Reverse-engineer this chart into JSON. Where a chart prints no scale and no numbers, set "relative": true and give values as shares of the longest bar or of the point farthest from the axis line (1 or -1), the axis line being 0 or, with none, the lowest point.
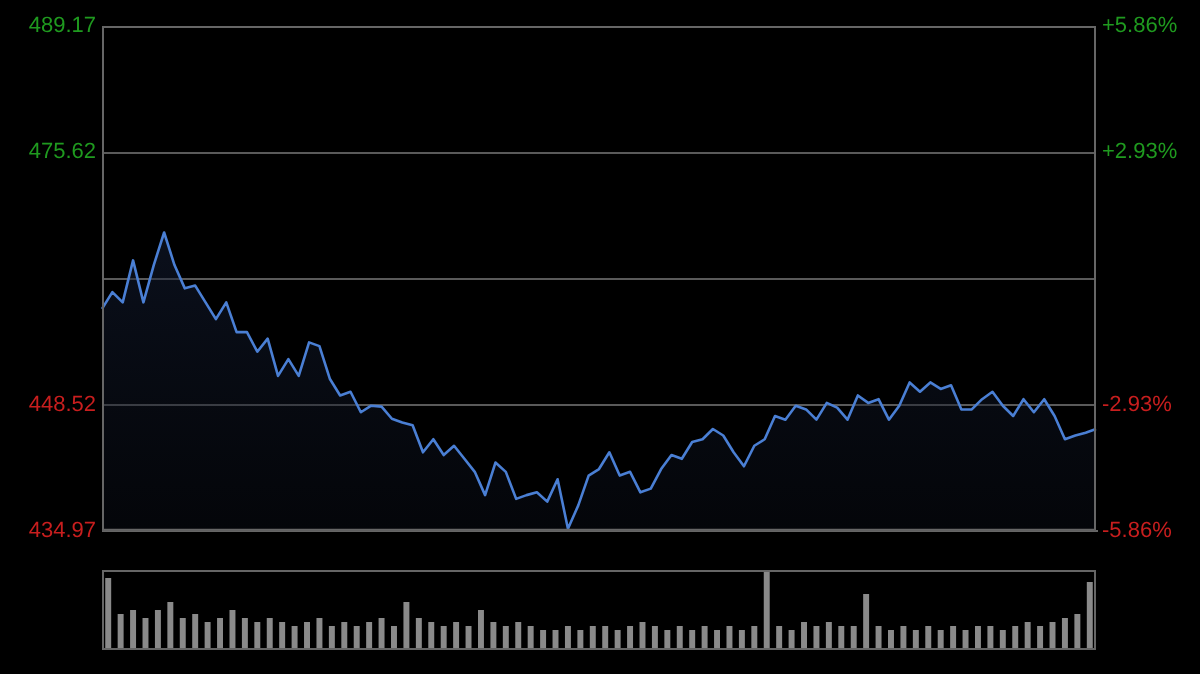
{
  "chart_data": [
    {
      "type": "area",
      "categories": [
        null,
        null,
        null,
        null,
        null,
        null,
        null,
        null,
        null,
        null,
        null,
        null,
        null,
        null,
        null,
        null,
        null,
        null,
        null,
        null,
        null,
        null,
        null,
        null,
        null,
        null,
        null,
        null,
        null,
        null,
        null,
        null,
        null,
        null,
        null,
        null,
        null,
        null,
        null,
        null,
        null,
        null,
        null,
        null,
        null,
        null,
        null,
        null,
        null,
        null,
        null,
        null,
        null,
        null,
        null,
        null,
        null,
        null,
        null,
        null,
        null,
        null,
        null,
        null,
        null,
        null,
        null,
        null,
        null,
        null,
        null,
        null,
        null,
        null,
        null,
        null,
        null,
        null,
        null,
        null,
        null,
        null,
        null,
        null,
        null,
        null,
        null,
        null,
        null,
        null,
        null,
        null,
        null,
        null,
        null,
        null,
        null
      ],
      "series": [
        {
          "color": "#4a7fd4",
          "values": [
            458.8,
            460.6,
            459.5,
            464.0,
            459.5,
            463.5,
            467.0,
            463.5,
            461.0,
            461.3,
            459.5,
            457.7,
            459.5,
            456.3,
            456.3,
            454.2,
            455.6,
            451.6,
            453.4,
            451.6,
            455.2,
            454.8,
            451.3,
            449.5,
            449.9,
            447.7,
            448.4,
            448.3,
            447.0,
            446.6,
            446.3,
            443.4,
            444.8,
            443.1,
            444.1,
            442.7,
            441.3,
            438.8,
            442.3,
            441.3,
            438.4,
            438.8,
            439.1,
            438.1,
            440.5,
            435.2,
            437.7,
            440.9,
            441.6,
            443.4,
            440.9,
            441.3,
            439.1,
            439.5,
            441.6,
            443.1,
            442.7,
            444.5,
            444.8,
            445.9,
            445.2,
            443.4,
            441.9,
            444.1,
            444.8,
            447.3,
            446.9,
            448.4,
            448.0,
            446.9,
            448.7,
            448.2,
            446.9,
            449.5,
            448.7,
            449.1,
            446.9,
            448.4,
            450.9,
            449.9,
            450.9,
            450.2,
            450.6,
            448.0,
            448.0,
            449.1,
            449.9,
            448.4,
            447.3,
            449.1,
            447.7,
            449.1,
            447.3,
            444.8,
            445.2,
            445.5,
            445.9
          ]
        }
      ],
      "ylim": [
        434.97,
        489.17
      ],
      "yticks": [
        434.97,
        448.52,
        {
          "value": 462.07,
          "label": null
        },
        475.62,
        489.17
      ],
      "y2lim": [
        -5.86,
        5.86
      ],
      "y2ticks": [
        {
          "value": -5.86,
          "label": "-5.86%"
        },
        {
          "value": -2.93,
          "label": "-2.93%"
        },
        {
          "value": 0,
          "label": null
        },
        {
          "value": 2.93,
          "label": "+2.93%"
        },
        {
          "value": 5.86,
          "label": "+5.86%"
        }
      ],
      "grid": "y",
      "legend": false,
      "marker": "none"
    },
    {
      "type": "bar",
      "relative": true,
      "color": "#8a8a8a",
      "categories": [
        null,
        null,
        null,
        null,
        null,
        null,
        null,
        null,
        null,
        null,
        null,
        null,
        null,
        null,
        null,
        null,
        null,
        null,
        null,
        null,
        null,
        null,
        null,
        null,
        null,
        null,
        null,
        null,
        null,
        null,
        null,
        null,
        null,
        null,
        null,
        null,
        null,
        null,
        null,
        null,
        null,
        null,
        null,
        null,
        null,
        null,
        null,
        null,
        null,
        null,
        null,
        null,
        null,
        null,
        null,
        null,
        null,
        null,
        null,
        null,
        null,
        null,
        null,
        null,
        null,
        null,
        null,
        null,
        null,
        null,
        null,
        null,
        null,
        null,
        null,
        null,
        null,
        null,
        null,
        null
      ],
      "values": [
        0.9,
        0.45,
        0.5,
        0.4,
        0.5,
        0.6,
        0.4,
        0.45,
        0.35,
        0.4,
        0.5,
        0.4,
        0.35,
        0.4,
        0.35,
        0.3,
        0.35,
        0.4,
        0.3,
        0.35,
        0.3,
        0.35,
        0.4,
        0.3,
        0.6,
        0.4,
        0.35,
        0.3,
        0.35,
        0.3,
        0.5,
        0.35,
        0.3,
        0.35,
        0.3,
        0.25,
        0.25,
        0.3,
        0.25,
        0.3,
        0.3,
        0.25,
        0.3,
        0.35,
        0.3,
        0.25,
        0.3,
        0.25,
        0.3,
        0.25,
        0.3,
        0.25,
        0.3,
        1.0,
        0.3,
        0.25,
        0.35,
        0.3,
        0.35,
        0.3,
        0.3,
        0.7,
        0.3,
        0.25,
        0.3,
        0.25,
        0.3,
        0.25,
        0.3,
        0.25,
        0.3,
        0.3,
        0.25,
        0.3,
        0.35,
        0.3,
        0.35,
        0.4,
        0.45,
        0.85
      ],
      "grid": false,
      "legend": false
    }
  ]
}
